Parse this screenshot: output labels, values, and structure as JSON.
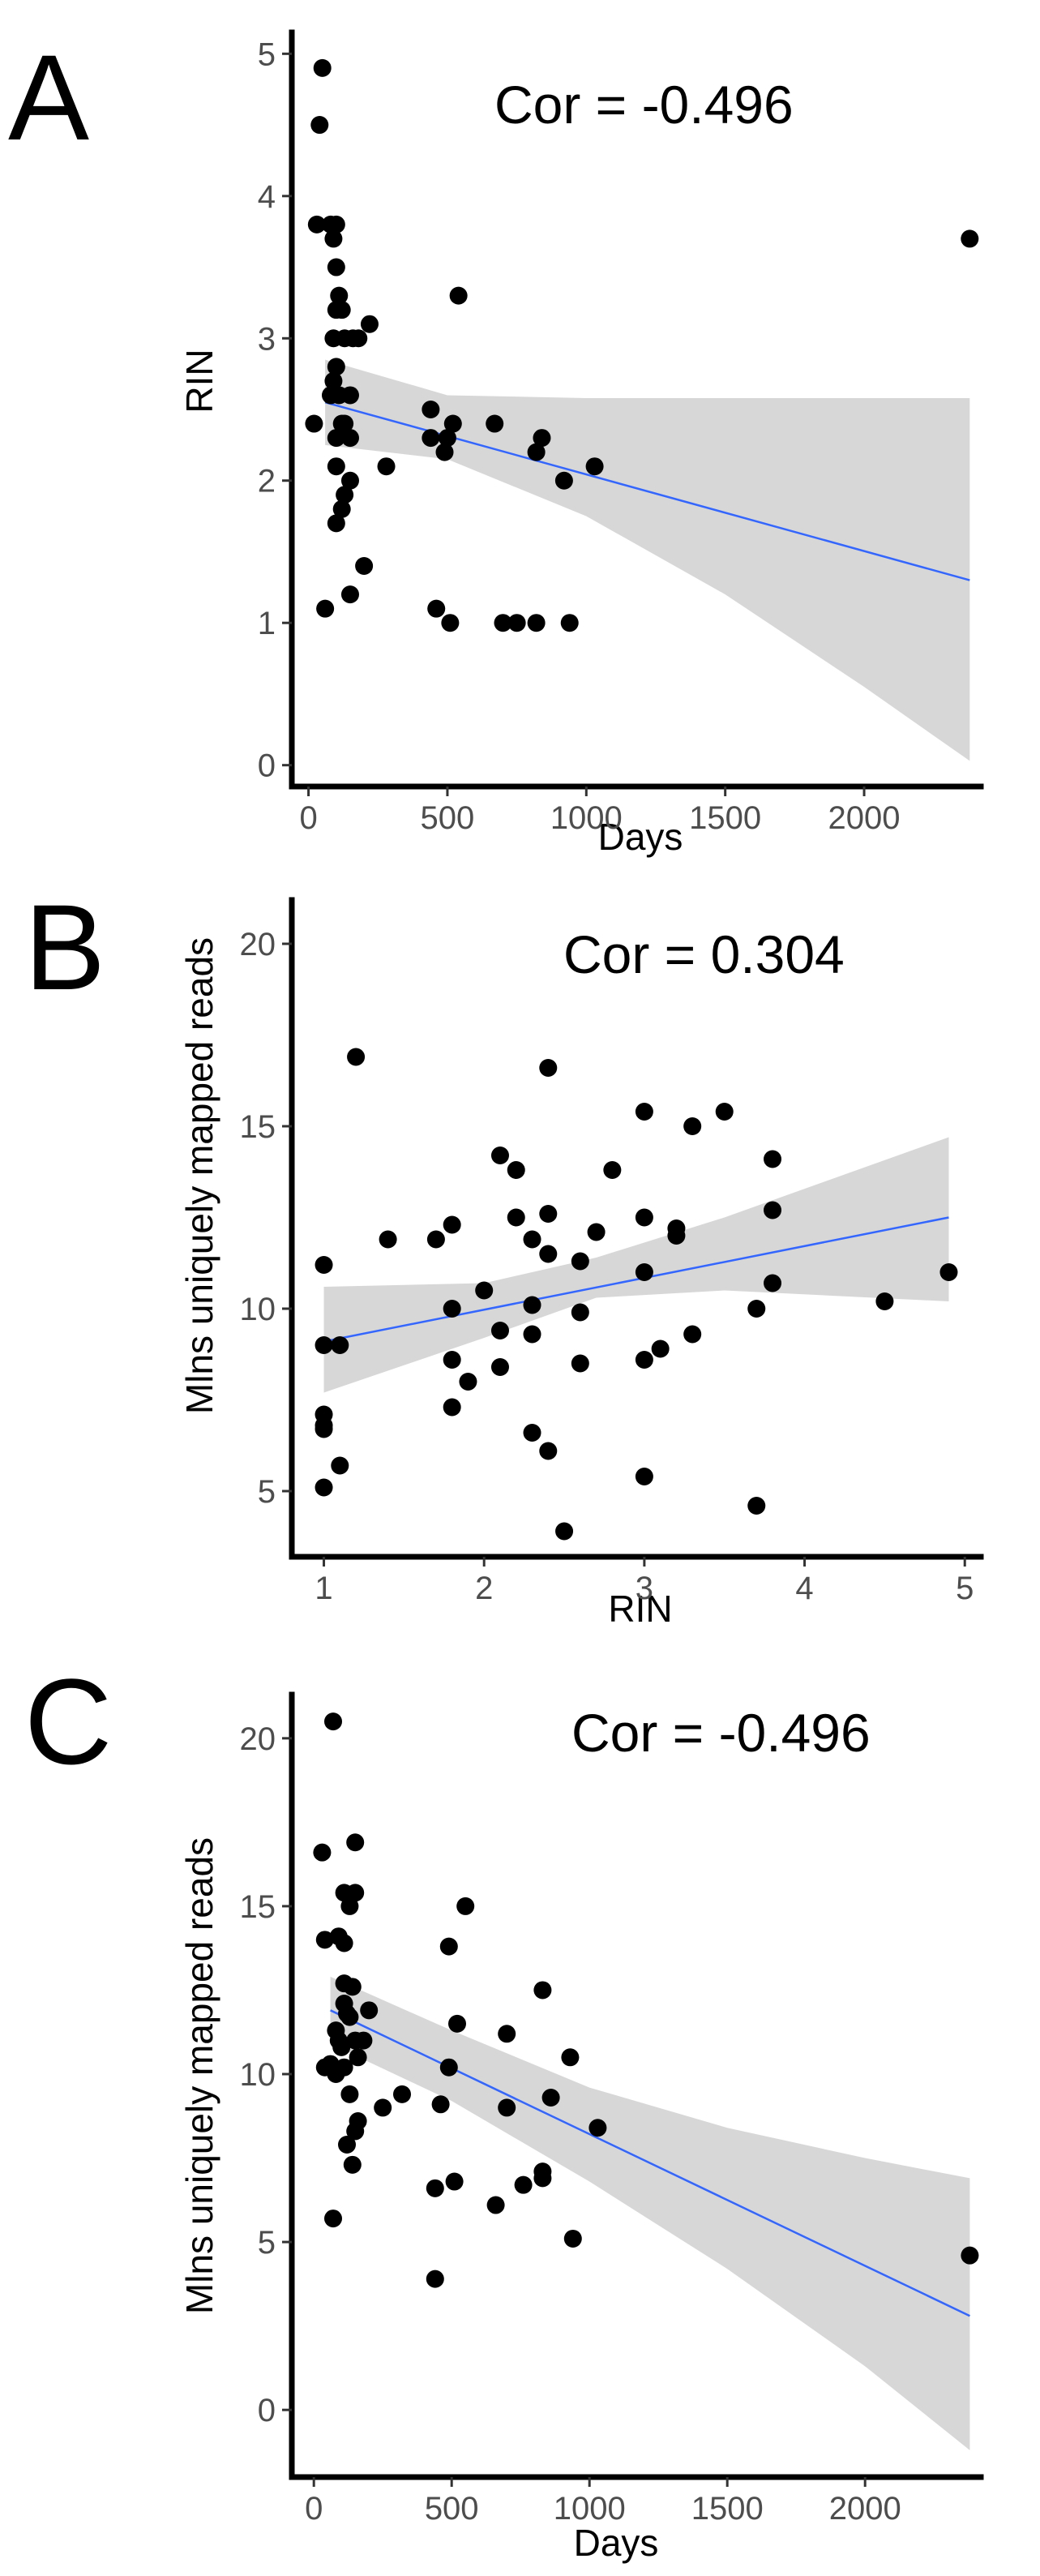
{
  "chart_data": [
    {
      "type": "scatter",
      "panel": "A",
      "annotation": "Cor = -0.496",
      "xlabel": "Days",
      "ylabel": "RIN",
      "xticks": [
        0,
        500,
        1000,
        1500,
        2000
      ],
      "yticks": [
        0,
        1,
        2,
        3,
        4,
        5
      ],
      "xlim": [
        -60,
        2420
      ],
      "ylim": [
        -0.15,
        5.15
      ],
      "fit": {
        "x": [
          60,
          2380
        ],
        "y": [
          2.55,
          1.3
        ]
      },
      "band": {
        "x": [
          60,
          500,
          1000,
          1500,
          2000,
          2380
        ],
        "upper": [
          2.85,
          2.6,
          2.58,
          2.58,
          2.58,
          2.58
        ],
        "lower": [
          2.25,
          2.15,
          1.75,
          1.2,
          0.55,
          0.03
        ]
      },
      "points": [
        [
          50,
          4.9
        ],
        [
          40,
          4.5
        ],
        [
          30,
          3.8
        ],
        [
          80,
          3.8
        ],
        [
          100,
          3.8
        ],
        [
          90,
          3.7
        ],
        [
          100,
          3.5
        ],
        [
          110,
          3.3
        ],
        [
          120,
          3.2
        ],
        [
          100,
          3.2
        ],
        [
          90,
          3.0
        ],
        [
          130,
          3.0
        ],
        [
          160,
          3.0
        ],
        [
          180,
          3.0
        ],
        [
          220,
          3.1
        ],
        [
          540,
          3.3
        ],
        [
          2380,
          3.7
        ],
        [
          100,
          2.8
        ],
        [
          90,
          2.7
        ],
        [
          110,
          2.6
        ],
        [
          80,
          2.6
        ],
        [
          150,
          2.6
        ],
        [
          120,
          2.4
        ],
        [
          20,
          2.4
        ],
        [
          130,
          2.4
        ],
        [
          100,
          2.3
        ],
        [
          150,
          2.3
        ],
        [
          440,
          2.5
        ],
        [
          520,
          2.4
        ],
        [
          670,
          2.4
        ],
        [
          440,
          2.3
        ],
        [
          490,
          2.2
        ],
        [
          500,
          2.3
        ],
        [
          840,
          2.3
        ],
        [
          820,
          2.2
        ],
        [
          920,
          2.0
        ],
        [
          1030,
          2.1
        ],
        [
          100,
          2.1
        ],
        [
          150,
          2.0
        ],
        [
          280,
          2.1
        ],
        [
          130,
          1.9
        ],
        [
          120,
          1.8
        ],
        [
          100,
          1.7
        ],
        [
          200,
          1.4
        ],
        [
          150,
          1.2
        ],
        [
          60,
          1.1
        ],
        [
          460,
          1.1
        ],
        [
          510,
          1.0
        ],
        [
          700,
          1.0
        ],
        [
          750,
          1.0
        ],
        [
          820,
          1.0
        ],
        [
          940,
          1.0
        ]
      ]
    },
    {
      "type": "scatter",
      "panel": "B",
      "annotation": "Cor = 0.304",
      "xlabel": "RIN",
      "ylabel": "Mlns uniquely mapped reads",
      "xticks": [
        1,
        2,
        3,
        4,
        5
      ],
      "yticks": [
        5,
        10,
        15,
        20
      ],
      "xlim": [
        0.8,
        5.1
      ],
      "ylim": [
        3.2,
        21.2
      ],
      "fit": {
        "x": [
          1.0,
          4.9
        ],
        "y": [
          9.1,
          12.5
        ]
      },
      "band": {
        "x": [
          1.0,
          2.0,
          2.7,
          3.5,
          4.9
        ],
        "upper": [
          10.6,
          10.7,
          11.4,
          12.5,
          14.7
        ],
        "lower": [
          7.7,
          9.2,
          10.3,
          10.5,
          10.2
        ]
      },
      "points": [
        [
          1.2,
          16.9
        ],
        [
          2.4,
          16.6
        ],
        [
          3.0,
          15.4
        ],
        [
          3.5,
          15.4
        ],
        [
          3.3,
          15.0
        ],
        [
          2.1,
          14.2
        ],
        [
          3.8,
          14.1
        ],
        [
          2.2,
          13.8
        ],
        [
          2.8,
          13.8
        ],
        [
          2.4,
          12.6
        ],
        [
          2.3,
          11.9
        ],
        [
          3.0,
          12.5
        ],
        [
          3.2,
          12.2
        ],
        [
          3.2,
          12.0
        ],
        [
          2.7,
          12.1
        ],
        [
          3.8,
          12.7
        ],
        [
          1.4,
          11.9
        ],
        [
          1.7,
          11.9
        ],
        [
          1.8,
          12.3
        ],
        [
          2.2,
          12.5
        ],
        [
          2.4,
          11.5
        ],
        [
          2.6,
          11.3
        ],
        [
          3.0,
          11.0
        ],
        [
          4.9,
          11.0
        ],
        [
          3.8,
          10.7
        ],
        [
          4.5,
          10.2
        ],
        [
          3.7,
          10.0
        ],
        [
          1.0,
          11.2
        ],
        [
          2.0,
          10.5
        ],
        [
          2.3,
          10.1
        ],
        [
          2.6,
          9.9
        ],
        [
          1.8,
          10.0
        ],
        [
          2.1,
          9.4
        ],
        [
          2.3,
          9.3
        ],
        [
          3.3,
          9.3
        ],
        [
          1.0,
          9.0
        ],
        [
          1.1,
          9.0
        ],
        [
          3.1,
          8.9
        ],
        [
          3.0,
          8.6
        ],
        [
          2.6,
          8.5
        ],
        [
          1.8,
          8.6
        ],
        [
          2.1,
          8.4
        ],
        [
          1.9,
          8.0
        ],
        [
          1.8,
          7.3
        ],
        [
          1.0,
          7.1
        ],
        [
          1.0,
          6.8
        ],
        [
          1.0,
          6.7
        ],
        [
          2.3,
          6.6
        ],
        [
          2.4,
          6.1
        ],
        [
          1.1,
          5.7
        ],
        [
          1.0,
          5.1
        ],
        [
          3.0,
          5.4
        ],
        [
          3.7,
          4.6
        ],
        [
          2.5,
          3.9
        ]
      ]
    },
    {
      "type": "scatter",
      "panel": "C",
      "annotation": "Cor = -0.496",
      "xlabel": "Days",
      "ylabel": "Mlns uniquely mapped reads",
      "xticks": [
        0,
        500,
        1000,
        1500,
        2000
      ],
      "yticks": [
        0,
        5,
        10,
        15,
        20
      ],
      "xlim": [
        -80,
        2420
      ],
      "ylim": [
        -2.0,
        21.3
      ],
      "fit": {
        "x": [
          60,
          2380
        ],
        "y": [
          11.9,
          2.8
        ]
      },
      "band": {
        "x": [
          60,
          500,
          1000,
          1500,
          2000,
          2380
        ],
        "upper": [
          12.9,
          11.3,
          9.6,
          8.4,
          7.5,
          6.9
        ],
        "lower": [
          10.9,
          9.2,
          6.8,
          4.2,
          1.3,
          -1.2
        ]
      },
      "points": [
        [
          70,
          20.5
        ],
        [
          150,
          16.9
        ],
        [
          30,
          16.6
        ],
        [
          110,
          15.4
        ],
        [
          150,
          15.4
        ],
        [
          130,
          15.0
        ],
        [
          550,
          15.0
        ],
        [
          90,
          14.1
        ],
        [
          40,
          14.0
        ],
        [
          110,
          13.9
        ],
        [
          490,
          13.8
        ],
        [
          110,
          12.7
        ],
        [
          140,
          12.6
        ],
        [
          830,
          12.5
        ],
        [
          110,
          12.1
        ],
        [
          120,
          11.8
        ],
        [
          200,
          11.9
        ],
        [
          130,
          11.7
        ],
        [
          80,
          11.3
        ],
        [
          520,
          11.5
        ],
        [
          700,
          11.2
        ],
        [
          90,
          11.0
        ],
        [
          150,
          11.0
        ],
        [
          180,
          11.0
        ],
        [
          100,
          10.8
        ],
        [
          60,
          10.3
        ],
        [
          110,
          10.2
        ],
        [
          160,
          10.5
        ],
        [
          490,
          10.2
        ],
        [
          930,
          10.5
        ],
        [
          40,
          10.2
        ],
        [
          80,
          10.0
        ],
        [
          130,
          9.4
        ],
        [
          320,
          9.4
        ],
        [
          460,
          9.1
        ],
        [
          700,
          9.0
        ],
        [
          860,
          9.3
        ],
        [
          250,
          9.0
        ],
        [
          160,
          8.6
        ],
        [
          150,
          8.3
        ],
        [
          1030,
          8.4
        ],
        [
          120,
          7.9
        ],
        [
          140,
          7.3
        ],
        [
          830,
          7.1
        ],
        [
          830,
          6.9
        ],
        [
          510,
          6.8
        ],
        [
          760,
          6.7
        ],
        [
          440,
          6.6
        ],
        [
          660,
          6.1
        ],
        [
          70,
          5.7
        ],
        [
          940,
          5.1
        ],
        [
          440,
          3.9
        ],
        [
          2380,
          4.6
        ]
      ]
    }
  ]
}
